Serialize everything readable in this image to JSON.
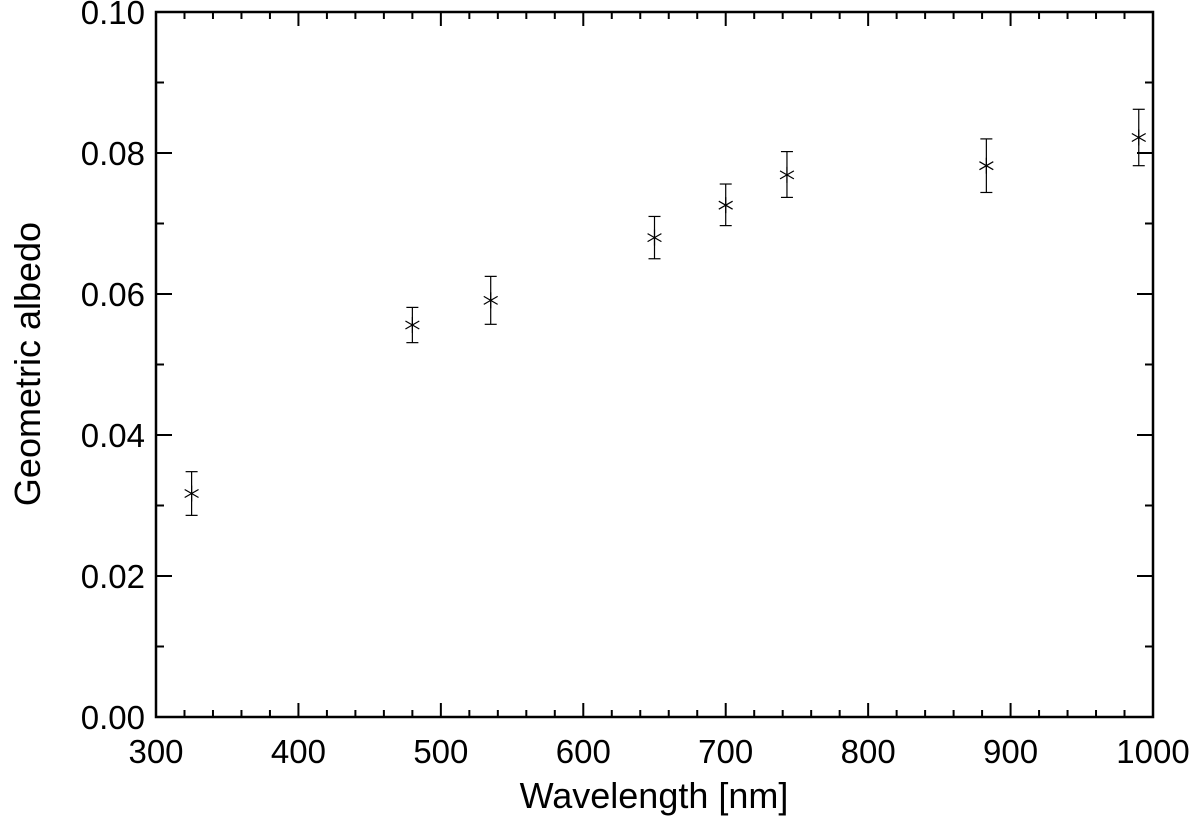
{
  "chart_data": {
    "type": "scatter",
    "xlabel": "Wavelength [nm]",
    "ylabel": "Geometric albedo",
    "xlim": [
      300,
      1000
    ],
    "ylim": [
      0.0,
      0.1
    ],
    "x_ticks": [
      300,
      400,
      500,
      600,
      700,
      800,
      900,
      1000
    ],
    "x_tick_labels": [
      "300",
      "400",
      "500",
      "600",
      "700",
      "800",
      "900",
      "1000"
    ],
    "y_ticks": [
      0.0,
      0.02,
      0.04,
      0.06,
      0.08,
      0.1
    ],
    "y_tick_labels": [
      "0.00",
      "0.02",
      "0.04",
      "0.06",
      "0.08",
      "0.10"
    ],
    "grid": false,
    "marker": "asterisk",
    "color": "#000000",
    "points": [
      {
        "x": 325,
        "y": 0.0317,
        "err_low": 0.0286,
        "err_high": 0.0348
      },
      {
        "x": 480,
        "y": 0.0556,
        "err_low": 0.0531,
        "err_high": 0.0581
      },
      {
        "x": 535,
        "y": 0.0591,
        "err_low": 0.0557,
        "err_high": 0.0625
      },
      {
        "x": 650,
        "y": 0.068,
        "err_low": 0.065,
        "err_high": 0.071
      },
      {
        "x": 700,
        "y": 0.0726,
        "err_low": 0.0697,
        "err_high": 0.0756
      },
      {
        "x": 743,
        "y": 0.0769,
        "err_low": 0.0737,
        "err_high": 0.0802
      },
      {
        "x": 883,
        "y": 0.0782,
        "err_low": 0.0744,
        "err_high": 0.082
      },
      {
        "x": 990,
        "y": 0.0822,
        "err_low": 0.0782,
        "err_high": 0.0862
      }
    ]
  }
}
